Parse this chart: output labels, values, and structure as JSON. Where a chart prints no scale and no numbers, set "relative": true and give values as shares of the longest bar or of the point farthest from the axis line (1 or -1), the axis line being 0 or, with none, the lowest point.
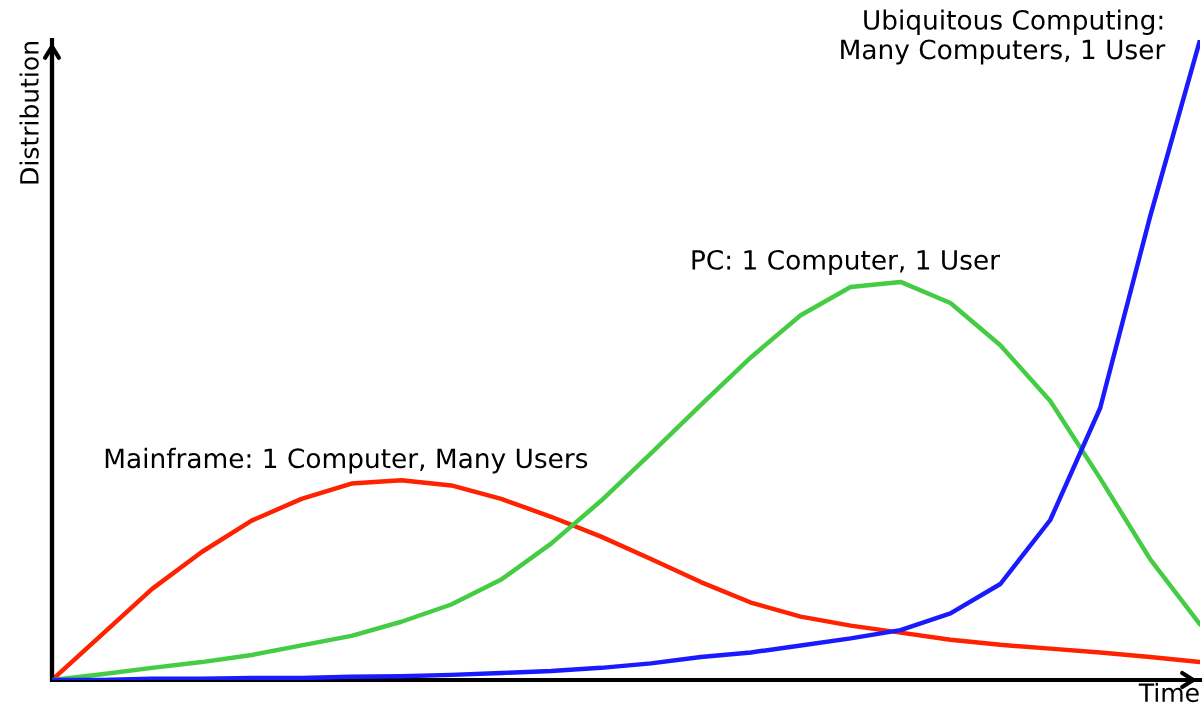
{
  "chart_data": {
    "type": "line",
    "relative": true,
    "xlabel": "Time",
    "ylabel": "Distribution",
    "categories": [
      null,
      null,
      null,
      null,
      null,
      null,
      null,
      null,
      null,
      null,
      null,
      null,
      null,
      null,
      null,
      null,
      null,
      null,
      null,
      null,
      null,
      null,
      null,
      null
    ],
    "series": [
      {
        "name": "Mainframe: 1 Computer, Many Users",
        "color": "#ff2200",
        "values": [
          0,
          0.071,
          0.142,
          0.2,
          0.249,
          0.283,
          0.307,
          0.312,
          0.304,
          0.283,
          0.255,
          0.224,
          0.189,
          0.153,
          0.121,
          0.099,
          0.085,
          0.074,
          0.063,
          0.055,
          0.049,
          0.043,
          0.036,
          0.028
        ]
      },
      {
        "name": "PC: 1 Computer, 1 User",
        "color": "#44cc44",
        "values": [
          0,
          0.009,
          0.019,
          0.028,
          0.039,
          0.054,
          0.069,
          0.091,
          0.118,
          0.157,
          0.213,
          0.28,
          0.354,
          0.43,
          0.504,
          0.57,
          0.614,
          0.622,
          0.589,
          0.523,
          0.436,
          0.315,
          0.189,
          0.087
        ]
      },
      {
        "name": "Ubiquitous Computing:\nMany Computers, 1 User",
        "color": "#1a1aff",
        "values": [
          0,
          0,
          0.002,
          0.002,
          0.003,
          0.003,
          0.005,
          0.006,
          0.008,
          0.011,
          0.014,
          0.019,
          0.026,
          0.036,
          0.043,
          0.054,
          0.065,
          0.078,
          0.104,
          0.15,
          0.25,
          0.425,
          0.724,
          1
        ]
      }
    ],
    "legend": false,
    "marker": "none",
    "line_style": "solid"
  }
}
